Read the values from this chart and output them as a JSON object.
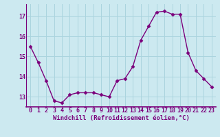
{
  "x": [
    0,
    1,
    2,
    3,
    4,
    5,
    6,
    7,
    8,
    9,
    10,
    11,
    12,
    13,
    14,
    15,
    16,
    17,
    18,
    19,
    20,
    21,
    22,
    23
  ],
  "y": [
    15.5,
    14.7,
    13.8,
    12.8,
    12.7,
    13.1,
    13.2,
    13.2,
    13.2,
    13.1,
    13.0,
    13.8,
    13.9,
    14.5,
    15.8,
    16.5,
    17.2,
    17.25,
    17.1,
    17.1,
    15.2,
    14.3,
    13.9,
    13.5
  ],
  "line_color": "#7b007b",
  "marker": "D",
  "marker_size": 2.5,
  "bg_color": "#cce9f0",
  "grid_color": "#aad4de",
  "xlabel": "Windchill (Refroidissement éolien,°C)",
  "ylim": [
    12.5,
    17.6
  ],
  "yticks": [
    13,
    14,
    15,
    16,
    17
  ],
  "xticks": [
    0,
    1,
    2,
    3,
    4,
    5,
    6,
    7,
    8,
    9,
    10,
    11,
    12,
    13,
    14,
    15,
    16,
    17,
    18,
    19,
    20,
    21,
    22,
    23
  ],
  "xlabel_fontsize": 6.5,
  "tick_fontsize": 6.0,
  "line_width": 1.0
}
